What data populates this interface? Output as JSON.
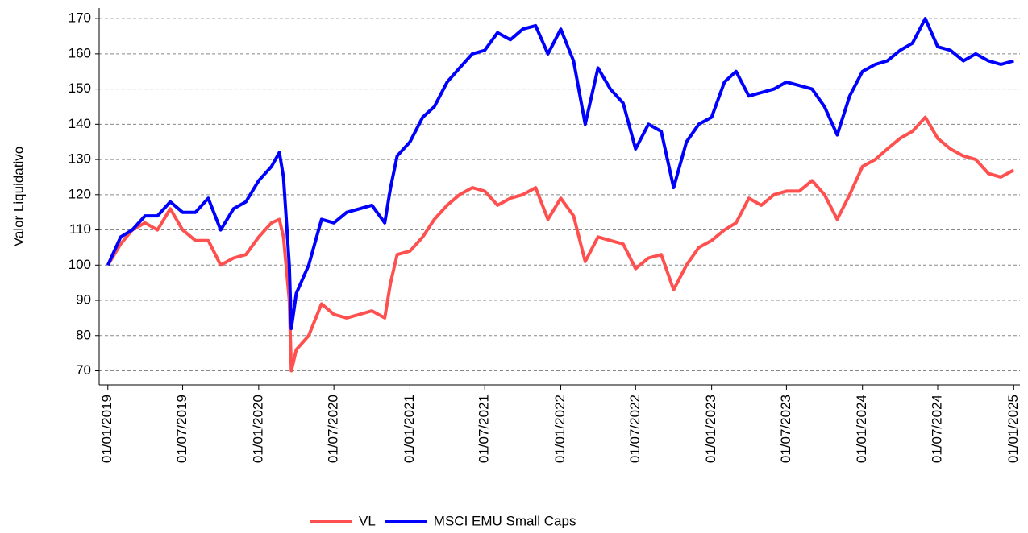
{
  "chart_data": {
    "type": "line",
    "y_label": "Valor Liquidativo",
    "x": [
      "2019-01-01",
      "2019-02-01",
      "2019-03-01",
      "2019-04-01",
      "2019-05-01",
      "2019-06-01",
      "2019-07-01",
      "2019-08-01",
      "2019-09-01",
      "2019-10-01",
      "2019-11-01",
      "2019-12-01",
      "2020-01-01",
      "2020-02-01",
      "2020-02-20",
      "2020-03-01",
      "2020-03-15",
      "2020-03-20",
      "2020-04-01",
      "2020-05-01",
      "2020-06-01",
      "2020-07-01",
      "2020-08-01",
      "2020-09-01",
      "2020-10-01",
      "2020-11-01",
      "2020-11-15",
      "2020-12-01",
      "2021-01-01",
      "2021-02-01",
      "2021-03-01",
      "2021-04-01",
      "2021-05-01",
      "2021-06-01",
      "2021-07-01",
      "2021-08-01",
      "2021-09-01",
      "2021-10-01",
      "2021-11-01",
      "2021-12-01",
      "2022-01-01",
      "2022-02-01",
      "2022-03-01",
      "2022-04-01",
      "2022-05-01",
      "2022-06-01",
      "2022-07-01",
      "2022-08-01",
      "2022-09-01",
      "2022-10-01",
      "2022-11-01",
      "2022-12-01",
      "2023-01-01",
      "2023-02-01",
      "2023-03-01",
      "2023-04-01",
      "2023-05-01",
      "2023-06-01",
      "2023-07-01",
      "2023-08-01",
      "2023-09-01",
      "2023-10-01",
      "2023-11-01",
      "2023-12-01",
      "2024-01-01",
      "2024-02-01",
      "2024-03-01",
      "2024-04-01",
      "2024-05-01",
      "2024-06-01",
      "2024-07-01",
      "2024-08-01",
      "2024-09-01",
      "2024-10-01",
      "2024-11-01",
      "2024-12-01",
      "2025-01-01"
    ],
    "series": [
      {
        "name": "VL",
        "color": "#ff5050",
        "values": [
          100,
          106,
          110,
          112,
          110,
          116,
          110,
          107,
          107,
          100,
          102,
          103,
          108,
          112,
          113,
          108,
          90,
          70,
          76,
          80,
          89,
          86,
          85,
          86,
          87,
          85,
          95,
          103,
          104,
          108,
          113,
          117,
          120,
          122,
          121,
          117,
          119,
          120,
          122,
          113,
          119,
          114,
          101,
          108,
          107,
          106,
          99,
          102,
          103,
          93,
          100,
          105,
          107,
          110,
          112,
          119,
          117,
          120,
          121,
          121,
          124,
          120,
          113,
          120,
          128,
          130,
          133,
          136,
          138,
          142,
          136,
          133,
          131,
          130,
          126,
          125,
          127
        ]
      },
      {
        "name": "MSCI EMU Small Caps",
        "color": "#0000ff",
        "values": [
          100,
          108,
          110,
          114,
          114,
          118,
          115,
          115,
          119,
          110,
          116,
          118,
          124,
          128,
          132,
          125,
          100,
          82,
          92,
          100,
          113,
          112,
          115,
          116,
          117,
          112,
          122,
          131,
          135,
          142,
          145,
          152,
          156,
          160,
          161,
          166,
          164,
          167,
          168,
          160,
          167,
          158,
          140,
          156,
          150,
          146,
          133,
          140,
          138,
          122,
          135,
          140,
          142,
          152,
          155,
          148,
          149,
          150,
          152,
          151,
          150,
          145,
          137,
          148,
          155,
          157,
          158,
          161,
          163,
          170,
          162,
          161,
          158,
          160,
          158,
          157,
          158
        ]
      }
    ],
    "xlim": [
      "2018-12-11",
      "2025-01-16"
    ],
    "xticks": [
      {
        "value": "2019-01-01",
        "label": "01/01/2019"
      },
      {
        "value": "2019-07-01",
        "label": "01/07/2019"
      },
      {
        "value": "2020-01-01",
        "label": "01/01/2020"
      },
      {
        "value": "2020-07-01",
        "label": "01/07/2020"
      },
      {
        "value": "2021-01-01",
        "label": "01/01/2021"
      },
      {
        "value": "2021-07-01",
        "label": "01/07/2021"
      },
      {
        "value": "2022-01-01",
        "label": "01/01/2022"
      },
      {
        "value": "2022-07-01",
        "label": "01/07/2022"
      },
      {
        "value": "2023-01-01",
        "label": "01/01/2023"
      },
      {
        "value": "2023-07-01",
        "label": "01/07/2023"
      },
      {
        "value": "2024-01-01",
        "label": "01/01/2024"
      },
      {
        "value": "2024-07-01",
        "label": "01/07/2024"
      },
      {
        "value": "2025-01-01",
        "label": "01/01/2025"
      }
    ],
    "ylim": [
      66,
      173
    ],
    "yticks": [
      70,
      80,
      90,
      100,
      110,
      120,
      130,
      140,
      150,
      160,
      170
    ],
    "grid": true,
    "legend": "bottom"
  }
}
